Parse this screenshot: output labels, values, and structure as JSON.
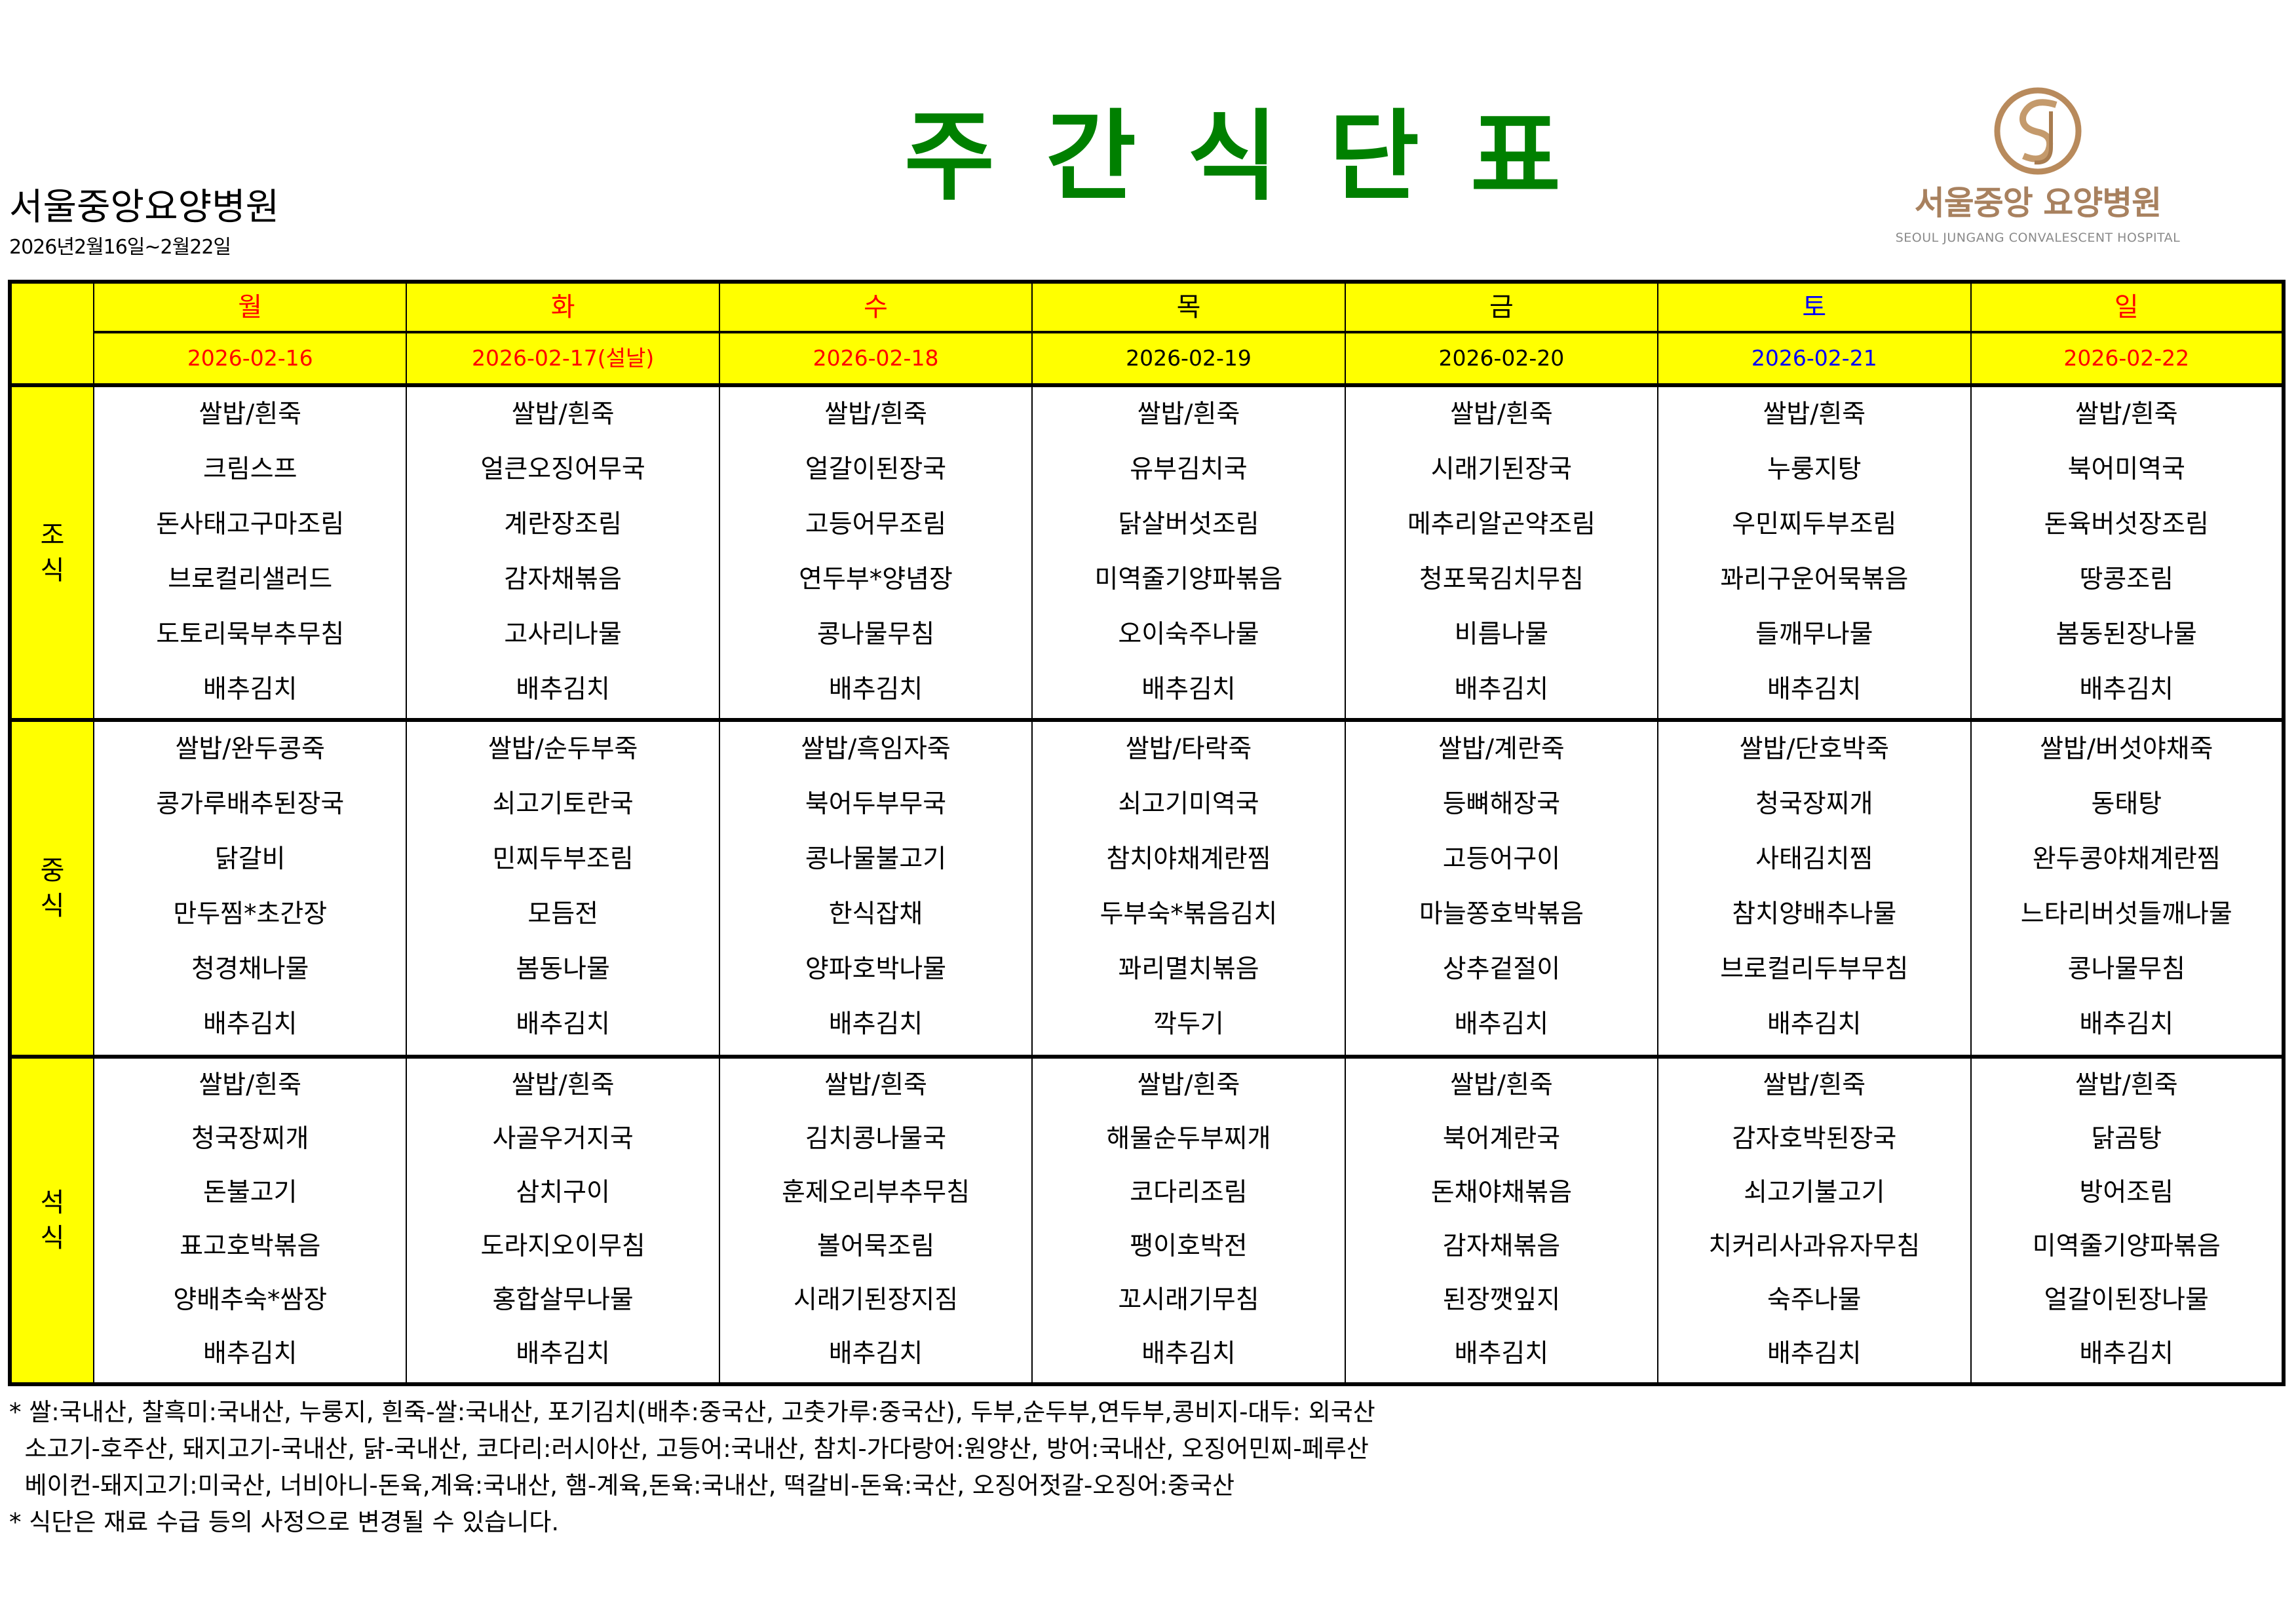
{
  "header": {
    "hospital_name": "서울중앙요양병원",
    "period": "2026년2월16일~2월22일",
    "title": "주간식단표",
    "logo": {
      "text_ko": "서울중앙 요양병원",
      "text_en": "SEOUL JUNGANG CONVALESCENT HOSPITAL",
      "color": "#a8815f"
    }
  },
  "colors": {
    "title": "#008000",
    "header_bg": "#ffff00",
    "weekday": "#000000",
    "holiday": "#ff0000",
    "saturday": "#0000ff"
  },
  "days": [
    {
      "day": "월",
      "date": "2026-02-16",
      "color": "red"
    },
    {
      "day": "화",
      "date": "2026-02-17(설날)",
      "color": "red"
    },
    {
      "day": "수",
      "date": "2026-02-18",
      "color": "red"
    },
    {
      "day": "목",
      "date": "2026-02-19",
      "color": "black"
    },
    {
      "day": "금",
      "date": "2026-02-20",
      "color": "black"
    },
    {
      "day": "토",
      "date": "2026-02-21",
      "color": "blue"
    },
    {
      "day": "일",
      "date": "2026-02-22",
      "color": "red"
    }
  ],
  "meals": [
    {
      "label": [
        "조",
        "식"
      ],
      "menus": [
        [
          "쌀밥/흰죽",
          "크림스프",
          "돈사태고구마조림",
          "브로컬리샐러드",
          "도토리묵부추무침",
          "배추김치"
        ],
        [
          "쌀밥/흰죽",
          "얼큰오징어무국",
          "계란장조림",
          "감자채볶음",
          "고사리나물",
          "배추김치"
        ],
        [
          "쌀밥/흰죽",
          "얼갈이된장국",
          "고등어무조림",
          "연두부*양념장",
          "콩나물무침",
          "배추김치"
        ],
        [
          "쌀밥/흰죽",
          "유부김치국",
          "닭살버섯조림",
          "미역줄기양파볶음",
          "오이숙주나물",
          "배추김치"
        ],
        [
          "쌀밥/흰죽",
          "시래기된장국",
          "메추리알곤약조림",
          "청포묵김치무침",
          "비름나물",
          "배추김치"
        ],
        [
          "쌀밥/흰죽",
          "누룽지탕",
          "우민찌두부조림",
          "꽈리구운어묵볶음",
          "들깨무나물",
          "배추김치"
        ],
        [
          "쌀밥/흰죽",
          "북어미역국",
          "돈육버섯장조림",
          "땅콩조림",
          "봄동된장나물",
          "배추김치"
        ]
      ]
    },
    {
      "label": [
        "중",
        "식"
      ],
      "menus": [
        [
          "쌀밥/완두콩죽",
          "콩가루배추된장국",
          "닭갈비",
          "만두찜*초간장",
          "청경채나물",
          "배추김치"
        ],
        [
          "쌀밥/순두부죽",
          "쇠고기토란국",
          "민찌두부조림",
          "모듬전",
          "봄동나물",
          "배추김치"
        ],
        [
          "쌀밥/흑임자죽",
          "북어두부무국",
          "콩나물불고기",
          "한식잡채",
          "양파호박나물",
          "배추김치"
        ],
        [
          "쌀밥/타락죽",
          "쇠고기미역국",
          "참치야채계란찜",
          "두부숙*볶음김치",
          "꽈리멸치볶음",
          "깍두기"
        ],
        [
          "쌀밥/계란죽",
          "등뼈해장국",
          "고등어구이",
          "마늘쫑호박볶음",
          "상추겉절이",
          "배추김치"
        ],
        [
          "쌀밥/단호박죽",
          "청국장찌개",
          "사태김치찜",
          "참치양배추나물",
          "브로컬리두부무침",
          "배추김치"
        ],
        [
          "쌀밥/버섯야채죽",
          "동태탕",
          "완두콩야채계란찜",
          "느타리버섯들깨나물",
          "콩나물무침",
          "배추김치"
        ]
      ]
    },
    {
      "label": [
        "석",
        "식"
      ],
      "menus": [
        [
          "쌀밥/흰죽",
          "청국장찌개",
          "돈불고기",
          "표고호박볶음",
          "양배추숙*쌈장",
          "배추김치"
        ],
        [
          "쌀밥/흰죽",
          "사골우거지국",
          "삼치구이",
          "도라지오이무침",
          "홍합살무나물",
          "배추김치"
        ],
        [
          "쌀밥/흰죽",
          "김치콩나물국",
          "훈제오리부추무침",
          "볼어묵조림",
          "시래기된장지짐",
          "배추김치"
        ],
        [
          "쌀밥/흰죽",
          "해물순두부찌개",
          "코다리조림",
          "팽이호박전",
          "꼬시래기무침",
          "배추김치"
        ],
        [
          "쌀밥/흰죽",
          "북어계란국",
          "돈채야채볶음",
          "감자채볶음",
          "된장깻잎지",
          "배추김치"
        ],
        [
          "쌀밥/흰죽",
          "감자호박된장국",
          "쇠고기불고기",
          "치커리사과유자무침",
          "숙주나물",
          "배추김치"
        ],
        [
          "쌀밥/흰죽",
          "닭곰탕",
          "방어조림",
          "미역줄기양파볶음",
          "얼갈이된장나물",
          "배추김치"
        ]
      ]
    }
  ],
  "notes": [
    "* 쌀:국내산, 찰흑미:국내산, 누룽지, 흰죽-쌀:국내산, 포기김치(배추:중국산, 고춧가루:중국산), 두부,순두부,연두부,콩비지-대두: 외국산",
    "  소고기-호주산, 돼지고기-국내산, 닭-국내산, 코다리:러시아산, 고등어:국내산, 참치-가다랑어:원양산, 방어:국내산, 오징어민찌-페루산",
    "  베이컨-돼지고기:미국산, 너비아니-돈육,계육:국내산, 햄-계육,돈육:국내산, 떡갈비-돈육:국산, 오징어젓갈-오징어:중국산",
    "* 식단은 재료 수급 등의 사정으로 변경될 수 있습니다."
  ]
}
